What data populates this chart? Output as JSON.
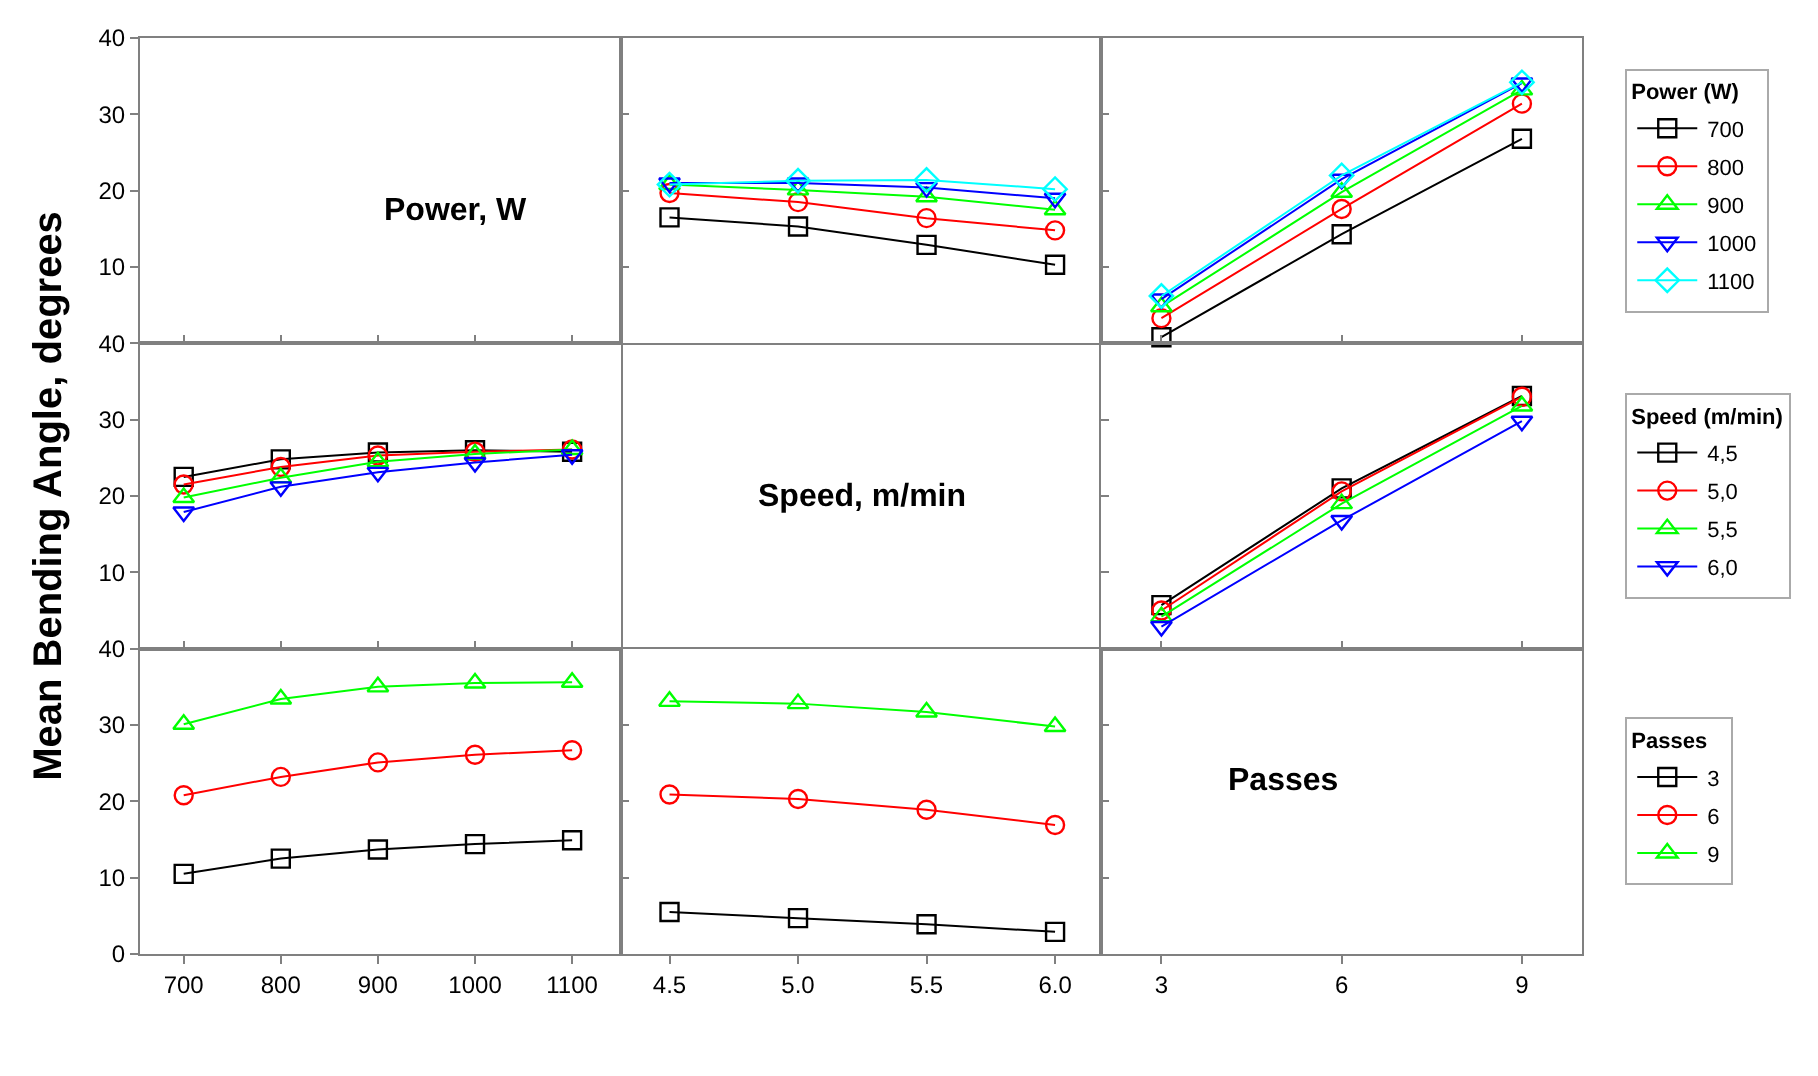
{
  "chart_data": [
    {
      "type": "line",
      "title": "Power, W",
      "xlim": [
        655,
        1150
      ],
      "xticks": [
        700,
        800,
        900,
        1000,
        1100
      ],
      "ylim": [
        0,
        40
      ],
      "yticks": [
        10,
        20,
        30,
        40
      ],
      "tick_labels": "y"
    },
    {
      "type": "line",
      "x": [
        4.5,
        5.0,
        5.5,
        6.0
      ],
      "xlim": [
        4.31,
        6.18
      ],
      "ylim": [
        0,
        40
      ],
      "yticks": [
        10,
        20,
        30,
        40
      ],
      "tick_labels": false,
      "grid": false,
      "series": [
        {
          "color": "#000000",
          "marker": "square",
          "values": [
            16.5,
            15.3,
            12.9,
            10.3
          ]
        },
        {
          "color": "#ff0000",
          "marker": "circle",
          "values": [
            19.7,
            18.5,
            16.4,
            14.8
          ]
        },
        {
          "color": "#00ff00",
          "marker": "triangle",
          "values": [
            20.8,
            20.1,
            19.2,
            17.5
          ]
        },
        {
          "color": "#0000ff",
          "marker": "triangle-down",
          "values": [
            21.0,
            21.0,
            20.4,
            19.0
          ]
        },
        {
          "color": "#00ffff",
          "marker": "diamond",
          "values": [
            20.8,
            21.3,
            21.4,
            20.2
          ]
        }
      ]
    },
    {
      "type": "line",
      "x": [
        3,
        6,
        9
      ],
      "xlim": [
        2,
        10
      ],
      "xticks": [
        3,
        6,
        9
      ],
      "ylim": [
        0,
        40
      ],
      "yticks": [
        10,
        20,
        30,
        40
      ],
      "tick_labels": false,
      "grid": false,
      "legend": "right",
      "legend_title": "Power (W)",
      "series": [
        {
          "name": "700",
          "color": "#000000",
          "marker": "square",
          "values": [
            0.8,
            14.3,
            26.8
          ]
        },
        {
          "name": "800",
          "color": "#ff0000",
          "marker": "circle",
          "values": [
            3.3,
            17.6,
            31.4
          ]
        },
        {
          "name": "900",
          "color": "#00ff00",
          "marker": "triangle",
          "values": [
            4.8,
            19.8,
            33.2
          ]
        },
        {
          "name": "1000",
          "color": "#0000ff",
          "marker": "triangle-down",
          "values": [
            5.8,
            21.5,
            34.1
          ]
        },
        {
          "name": "1100",
          "color": "#00ffff",
          "marker": "diamond",
          "values": [
            6.2,
            22.0,
            34.2
          ]
        }
      ]
    },
    {
      "type": "line",
      "x": [
        700,
        800,
        900,
        1000,
        1100
      ],
      "xlim": [
        655,
        1150
      ],
      "xticks": [
        700,
        800,
        900,
        1000,
        1100
      ],
      "ylim": [
        0,
        40
      ],
      "yticks": [
        10,
        20,
        30,
        40
      ],
      "tick_labels": "y",
      "grid": false,
      "ylabel": "Mean Bending Angle, degrees",
      "series": [
        {
          "color": "#000000",
          "marker": "square",
          "values": [
            22.5,
            24.8,
            25.7,
            26.0,
            25.8
          ]
        },
        {
          "color": "#ff0000",
          "marker": "circle",
          "values": [
            21.5,
            23.8,
            25.3,
            25.8,
            26.1
          ]
        },
        {
          "color": "#00ff00",
          "marker": "triangle",
          "values": [
            19.8,
            22.4,
            24.5,
            25.5,
            26.1
          ]
        },
        {
          "color": "#0000ff",
          "marker": "triangle-down",
          "values": [
            17.9,
            21.2,
            23.1,
            24.4,
            25.4
          ]
        }
      ]
    },
    {
      "type": "other",
      "title": "Speed, m/min"
    },
    {
      "type": "line",
      "x": [
        3,
        6,
        9
      ],
      "xlim": [
        2,
        10
      ],
      "xticks": [
        3,
        6,
        9
      ],
      "ylim": [
        0,
        40
      ],
      "yticks": [
        10,
        20,
        30,
        40
      ],
      "tick_labels": false,
      "grid": false,
      "legend": "right",
      "legend_title": "Speed (m/min)",
      "series": [
        {
          "name": "4,5",
          "color": "#000000",
          "marker": "square",
          "values": [
            5.7,
            21.0,
            33.1
          ]
        },
        {
          "name": "5,0",
          "color": "#ff0000",
          "marker": "circle",
          "values": [
            5.0,
            20.6,
            33.0
          ]
        },
        {
          "name": "5,5",
          "color": "#00ff00",
          "marker": "triangle",
          "values": [
            4.2,
            19.0,
            31.8
          ]
        },
        {
          "name": "6,0",
          "color": "#0000ff",
          "marker": "triangle-down",
          "values": [
            2.9,
            16.8,
            29.8
          ]
        }
      ]
    },
    {
      "type": "line",
      "x": [
        700,
        800,
        900,
        1000,
        1100
      ],
      "xlim": [
        655,
        1150
      ],
      "xticks": [
        700,
        800,
        900,
        1000,
        1100
      ],
      "ylim": [
        0,
        40
      ],
      "yticks": [
        0,
        10,
        20,
        30,
        40
      ],
      "grid": false,
      "series": [
        {
          "color": "#000000",
          "marker": "square",
          "values": [
            10.5,
            12.5,
            13.7,
            14.4,
            14.9
          ]
        },
        {
          "color": "#ff0000",
          "marker": "circle",
          "values": [
            20.8,
            23.2,
            25.1,
            26.1,
            26.7
          ]
        },
        {
          "color": "#00ff00",
          "marker": "triangle",
          "values": [
            30.1,
            33.4,
            35.0,
            35.5,
            35.6
          ]
        }
      ]
    },
    {
      "type": "line",
      "x": [
        4.5,
        5.0,
        5.5,
        6.0
      ],
      "xlim": [
        4.31,
        6.18
      ],
      "xticks": [
        4.5,
        {
          "value": 5,
          "label": "5.0"
        },
        5.5,
        {
          "value": 6,
          "label": "6.0"
        }
      ],
      "ylim": [
        0,
        40
      ],
      "yticks": [
        0,
        10,
        20,
        30,
        40
      ],
      "tick_labels": "x",
      "grid": false,
      "legend": "right",
      "legend_title": "Passes",
      "series": [
        {
          "name": "3",
          "color": "#000000",
          "marker": "square",
          "values": [
            5.5,
            4.7,
            3.9,
            2.9
          ]
        },
        {
          "name": "6",
          "color": "#ff0000",
          "marker": "circle",
          "values": [
            20.9,
            20.3,
            18.9,
            16.9
          ]
        },
        {
          "name": "9",
          "color": "#00ff00",
          "marker": "triangle",
          "values": [
            33.1,
            32.8,
            31.7,
            29.8
          ]
        }
      ]
    },
    {
      "type": "line",
      "title": "Passes",
      "xlim": [
        2,
        10
      ],
      "xticks": [
        3,
        6,
        9
      ],
      "ylim": [
        0,
        40
      ],
      "yticks": [
        0,
        10,
        20,
        30,
        40
      ],
      "tick_labels": "x"
    }
  ]
}
